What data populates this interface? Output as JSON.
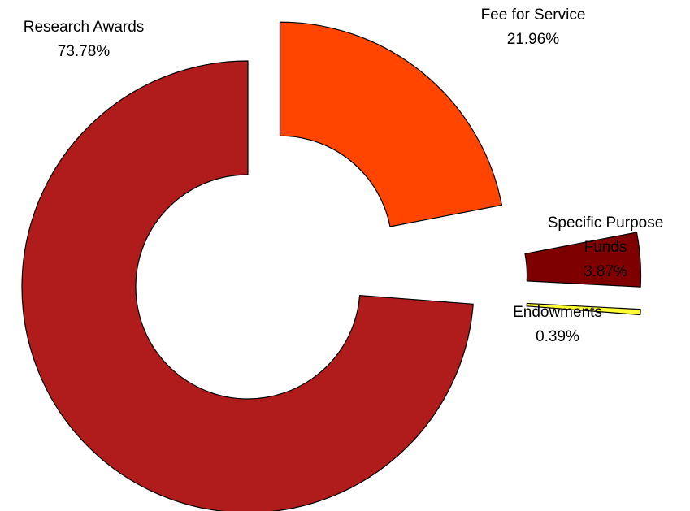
{
  "chart_data": {
    "type": "pie",
    "style": "exploded-donut",
    "start_angle_deg": 0,
    "direction": "clockwise",
    "slices": [
      {
        "label": "Fee for Service",
        "value": 21.96,
        "value_label": "21.96%",
        "color": "#FF4500"
      },
      {
        "label": "Specific Purpose Funds",
        "value": 3.87,
        "value_label": "3.87%",
        "color": "#7F0000"
      },
      {
        "label": "Endowments",
        "value": 0.39,
        "value_label": "0.39%",
        "color": "#FFFF33"
      },
      {
        "label": "Research Awards",
        "value": 73.78,
        "value_label": "73.78%",
        "color": "#B01C1C"
      }
    ],
    "outline_color": "#000000",
    "legend": "none",
    "title": ""
  }
}
